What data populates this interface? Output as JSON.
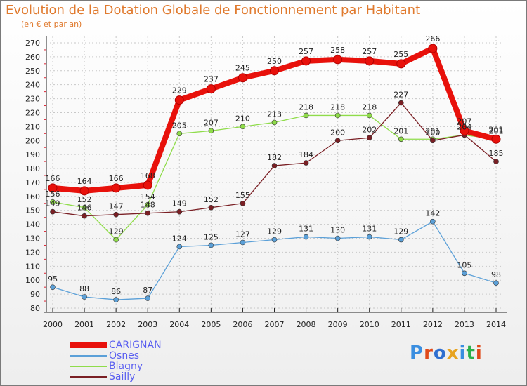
{
  "title": "Evolution de la Dotation Globale de Fonctionnement par Habitant",
  "subtitle": "(en € et par an)",
  "brand": {
    "text": "Proxiti",
    "letter_colors": [
      "#3a8ee0",
      "#e04a1a",
      "#2f6fd0",
      "#e7a31f",
      "#3a8ee0",
      "#2bb04a",
      "#e04a1a"
    ]
  },
  "chart_data": {
    "type": "line",
    "title": "Evolution de la Dotation Globale de Fonctionnement par Habitant",
    "subtitle": "(en € et par an)",
    "x": [
      "2000",
      "2001",
      "2002",
      "2003",
      "2004",
      "2005",
      "2006",
      "2007",
      "2008",
      "2009",
      "2010",
      "2011",
      "2012",
      "2013",
      "2014"
    ],
    "ylim": [
      80,
      270
    ],
    "yticks": [
      80,
      90,
      100,
      110,
      120,
      130,
      140,
      150,
      160,
      170,
      180,
      190,
      200,
      210,
      220,
      230,
      240,
      250,
      260,
      270
    ],
    "grid": true,
    "legend_position": "bottom-left",
    "series": [
      {
        "name": "CARIGNAN",
        "color": "#e8110b",
        "values": [
          166,
          164,
          166,
          168,
          229,
          237,
          245,
          250,
          257,
          258,
          257,
          255,
          266,
          207,
          201
        ]
      },
      {
        "name": "Osnes",
        "color": "#5ba0d8",
        "values": [
          95,
          88,
          86,
          87,
          124,
          125,
          127,
          129,
          131,
          130,
          131,
          129,
          142,
          105,
          98
        ]
      },
      {
        "name": "Blagny",
        "color": "#8fdc4a",
        "values": [
          156,
          152,
          129,
          154,
          205,
          207,
          210,
          213,
          218,
          218,
          218,
          201,
          201,
          204,
          201
        ]
      },
      {
        "name": "Sailly",
        "color": "#7a1f24",
        "values": [
          149,
          146,
          147,
          148,
          149,
          152,
          155,
          182,
          184,
          200,
          202,
          227,
          200,
          204,
          185
        ]
      }
    ]
  }
}
